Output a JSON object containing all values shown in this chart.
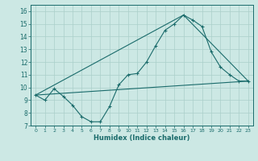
{
  "bg_color": "#cce8e4",
  "line_color": "#1a6b6b",
  "grid_color": "#aacfca",
  "xlabel": "Humidex (Indice chaleur)",
  "xlim": [
    -0.5,
    23.5
  ],
  "ylim": [
    7,
    16.5
  ],
  "yticks": [
    7,
    8,
    9,
    10,
    11,
    12,
    13,
    14,
    15,
    16
  ],
  "xticks": [
    0,
    1,
    2,
    3,
    4,
    5,
    6,
    7,
    8,
    9,
    10,
    11,
    12,
    13,
    14,
    15,
    16,
    17,
    18,
    19,
    20,
    21,
    22,
    23
  ],
  "line1_x": [
    0,
    1,
    2,
    3,
    4,
    5,
    6,
    7,
    8,
    9,
    10,
    11,
    12,
    13,
    14,
    15,
    16,
    17,
    18,
    19,
    20,
    21,
    22,
    23
  ],
  "line1_y": [
    9.4,
    9.0,
    9.9,
    9.3,
    8.6,
    7.7,
    7.3,
    7.3,
    8.5,
    10.2,
    11.0,
    11.1,
    12.0,
    13.3,
    14.5,
    15.0,
    15.7,
    15.3,
    14.8,
    12.8,
    11.6,
    11.0,
    10.5,
    10.5
  ],
  "line2_x": [
    0,
    23
  ],
  "line2_y": [
    9.4,
    10.5
  ],
  "line3_x": [
    0,
    16,
    23
  ],
  "line3_y": [
    9.4,
    15.7,
    10.5
  ]
}
